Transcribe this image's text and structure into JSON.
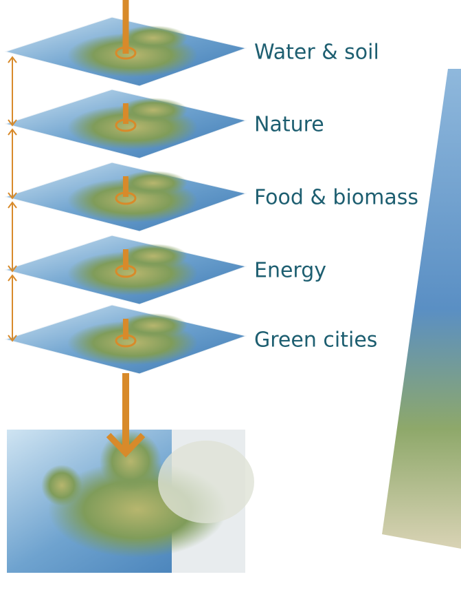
{
  "layers": [
    "Water & soil",
    "Nature",
    "Food & biomass",
    "Energy",
    "Green cities"
  ]
}
